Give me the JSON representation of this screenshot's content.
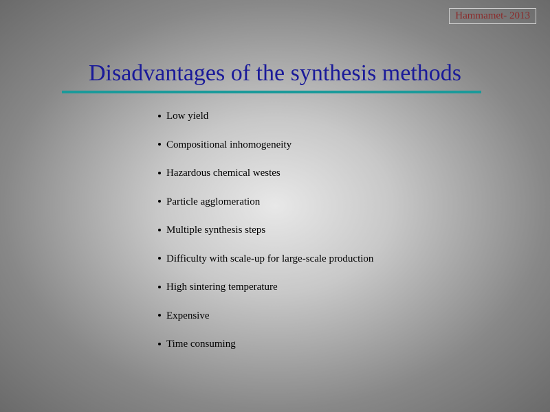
{
  "header": {
    "tag": "Hammamet- 2013",
    "tag_color": "#8b2a2a",
    "tag_border_color": "#d0d0d0"
  },
  "title": {
    "text": "Disadvantages of the synthesis methods",
    "color": "#1a1a99",
    "fontsize": 34,
    "underline_color": "#1a9a9a",
    "underline_width": 610,
    "underline_height": 4
  },
  "list": {
    "font_color": "#000000",
    "fontsize": 15,
    "items": [
      "Low yield",
      "Compositional inhomogeneity",
      "Hazardous chemical westes",
      "Particle agglomeration",
      "Multiple synthesis steps",
      "Difficulty with scale-up for large-scale production",
      "High sintering temperature",
      "Expensive",
      "Time consuming"
    ]
  },
  "background": {
    "gradient_center": "#e8e8e8",
    "gradient_edge": "#6a6a6a"
  }
}
